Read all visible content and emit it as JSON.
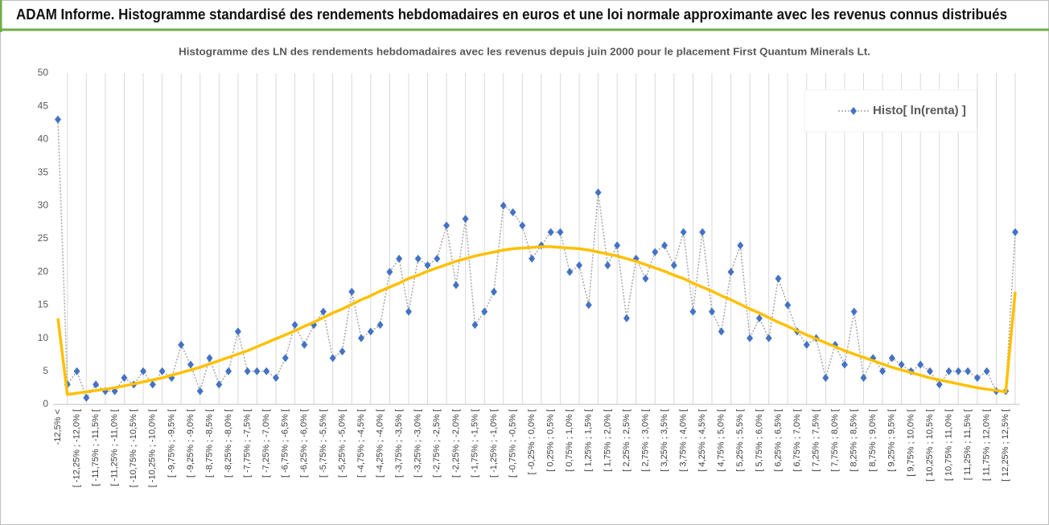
{
  "header": {
    "title": "ADAM Informe. Histogramme standardisé des rendements hebdomadaires en euros et une loi normale approximante avec les revenus connus distribués"
  },
  "chart_data": {
    "type": "line",
    "title": "Histogramme des LN des rendements hebdomadaires avec les revenus depuis juin 2000 pour le placement First  Quantum Minerals Lt.",
    "categories": [
      "-12,5% <",
      null,
      "[ -12,25% ; -12,0% [",
      null,
      "[ -11,75% ; -11,5% [",
      null,
      "[ -11,25% ; -11,0% [",
      null,
      "[ -10,75% ; -10,5% [",
      null,
      "[ -10,25% ; -10,0% [",
      null,
      "[ -9,75% ; -9,5% [",
      null,
      "[ -9,25% ; -9,0% [",
      null,
      "[ -8,75% ; -8,5% [",
      null,
      "[ -8,25% ; -8,0% [",
      null,
      "[ -7,75% ; -7,5% [",
      null,
      "[ -7,25% ; -7,0% [",
      null,
      "[ -6,75% ; -6,5% [",
      null,
      "[ -6,25% ; -6,0% [",
      null,
      "[ -5,75% ; -5,5% [",
      null,
      "[ -5,25% ; -5,0% [",
      null,
      "[ -4,75% ; -4,5% [",
      null,
      "[ -4,25% ; -4,0% [",
      null,
      "[ -3,75% ; -3,5% [",
      null,
      "[ -3,25% ; -3,0% [",
      null,
      "[ -2,75% ; -2,5% [",
      null,
      "[ -2,25% ; -2,0% [",
      null,
      "[ -1,75% ; -1,5% [",
      null,
      "[ -1,25% ; -1,0% [",
      null,
      "[ -0,75% ; -0,5% [",
      null,
      "[ -0,25% ; 0,0% [",
      null,
      "[ 0,25% ; 0,5% [",
      null,
      "[ 0,75% ; 1,0% [",
      null,
      "[ 1,25% ; 1,5% [",
      null,
      "[ 1,75% ; 2,0% [",
      null,
      "[ 2,25% ; 2,5% [",
      null,
      "[ 2,75% ; 3,0% [",
      null,
      "[ 3,25% ; 3,5% [",
      null,
      "[ 3,75% ; 4,0% [",
      null,
      "[ 4,25% ; 4,5% [",
      null,
      "[ 4,75% ; 5,0% [",
      null,
      "[ 5,25% ; 5,5% [",
      null,
      "[ 5,75% ; 6,0% [",
      null,
      "[ 6,25% ; 6,5% [",
      null,
      "[ 6,75% ; 7,0% [",
      null,
      "[ 7,25% ; 7,5% [",
      null,
      "[ 7,75% ; 8,0% [",
      null,
      "[ 8,25% ; 8,5% [",
      null,
      "[ 8,75% ; 9,0% [",
      null,
      "[ 9,25% ; 9,5% [",
      null,
      "[ 9,75% ; 10,0% [",
      null,
      "[ 10,25% ; 10,5% [",
      null,
      "[ 10,75% ; 11,0% [",
      null,
      "[ 11,25% ; 11,5% [",
      null,
      "[ 11,75% ; 12,0% [",
      null,
      "[ 12,25% ; 12,5% [",
      null
    ],
    "series": [
      {
        "name": "Histo[ ln(renta) ]",
        "color": "#4472c4",
        "line_color": "#a6a6a6",
        "line_style": "dotted",
        "marker": "diamond",
        "values": [
          43,
          3,
          5,
          1,
          3,
          2,
          2,
          4,
          3,
          5,
          3,
          5,
          4,
          9,
          6,
          2,
          7,
          3,
          5,
          11,
          5,
          5,
          5,
          4,
          7,
          12,
          9,
          12,
          14,
          7,
          8,
          17,
          10,
          11,
          12,
          20,
          22,
          14,
          22,
          21,
          22,
          27,
          18,
          28,
          12,
          14,
          17,
          30,
          29,
          27,
          22,
          24,
          26,
          26,
          20,
          21,
          15,
          32,
          21,
          24,
          13,
          22,
          19,
          23,
          24,
          21,
          26,
          14,
          26,
          14,
          11,
          20,
          24,
          10,
          13,
          10,
          19,
          15,
          11,
          9,
          10,
          4,
          9,
          6,
          14,
          4,
          7,
          5,
          7,
          6,
          5,
          6,
          5,
          3,
          5,
          5,
          5,
          4,
          5,
          2,
          2,
          26
        ]
      },
      {
        "color": "#ffc000",
        "line_style": "solid",
        "values": [
          13,
          1.5,
          1.7,
          1.9,
          2.1,
          2.3,
          2.5,
          2.8,
          3.1,
          3.4,
          3.7,
          4.0,
          4.4,
          4.8,
          5.2,
          5.6,
          6.1,
          6.6,
          7.1,
          7.6,
          8.1,
          8.7,
          9.3,
          9.9,
          10.5,
          11.1,
          11.8,
          12.4,
          13.1,
          13.8,
          14.4,
          15.1,
          15.8,
          16.4,
          17.1,
          17.7,
          18.3,
          19.0,
          19.5,
          20.1,
          20.6,
          21.1,
          21.6,
          22.0,
          22.4,
          22.7,
          23.0,
          23.3,
          23.5,
          23.6,
          23.7,
          23.8,
          23.8,
          23.7,
          23.6,
          23.5,
          23.3,
          23.0,
          22.7,
          22.4,
          22.0,
          21.6,
          21.1,
          20.6,
          20.1,
          19.5,
          19.0,
          18.3,
          17.7,
          17.1,
          16.4,
          15.8,
          15.1,
          14.4,
          13.8,
          13.1,
          12.4,
          11.8,
          11.1,
          10.5,
          9.9,
          9.3,
          8.7,
          8.1,
          7.6,
          7.1,
          6.6,
          6.1,
          5.6,
          5.2,
          4.8,
          4.4,
          4.0,
          3.7,
          3.4,
          3.1,
          2.8,
          2.5,
          2.3,
          2.1,
          1.9,
          17
        ]
      }
    ],
    "ylim": [
      0,
      50
    ],
    "yticks": [
      0,
      5,
      10,
      15,
      20,
      25,
      30,
      35,
      40,
      45,
      50
    ],
    "grid": true,
    "legend": "upper right"
  }
}
